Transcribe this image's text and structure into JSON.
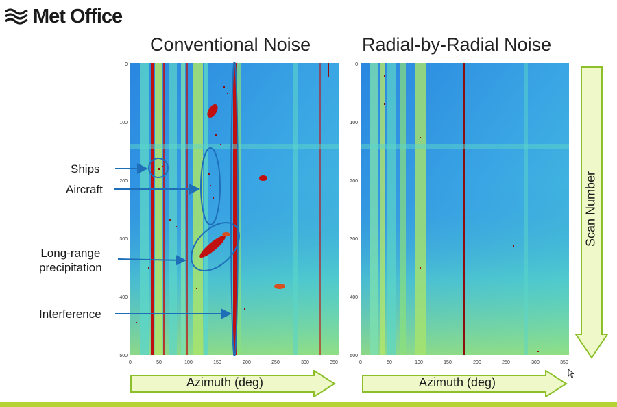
{
  "brand": {
    "name": "Met Office"
  },
  "panels": {
    "left_title": "Conventional Noise",
    "right_title": "Radial-by-Radial Noise"
  },
  "annotations": {
    "ships": "Ships",
    "aircraft": "Aircraft",
    "precip_line1": "Long-range",
    "precip_line2": "precipitation",
    "interference": "Interference"
  },
  "axes": {
    "x_label": "Azimuth (deg)",
    "y_label": "Scan Number",
    "x_ticks": [
      "0",
      "50",
      "100",
      "150",
      "200",
      "250",
      "300",
      "350"
    ],
    "y_ticks": [
      "0",
      "100",
      "200",
      "300",
      "400",
      "500"
    ]
  },
  "colors": {
    "background_blue": "#2a86e0",
    "noise_cyan": "#4fd8d0",
    "stripe_yellow": "#c6e84a",
    "feature_red": "#c01010",
    "annotation_blue": "#1e6fb8",
    "arrow_fill": "#eef8c8",
    "arrow_stroke": "#8cbf2a",
    "accent_bar": "#b5d334"
  }
}
